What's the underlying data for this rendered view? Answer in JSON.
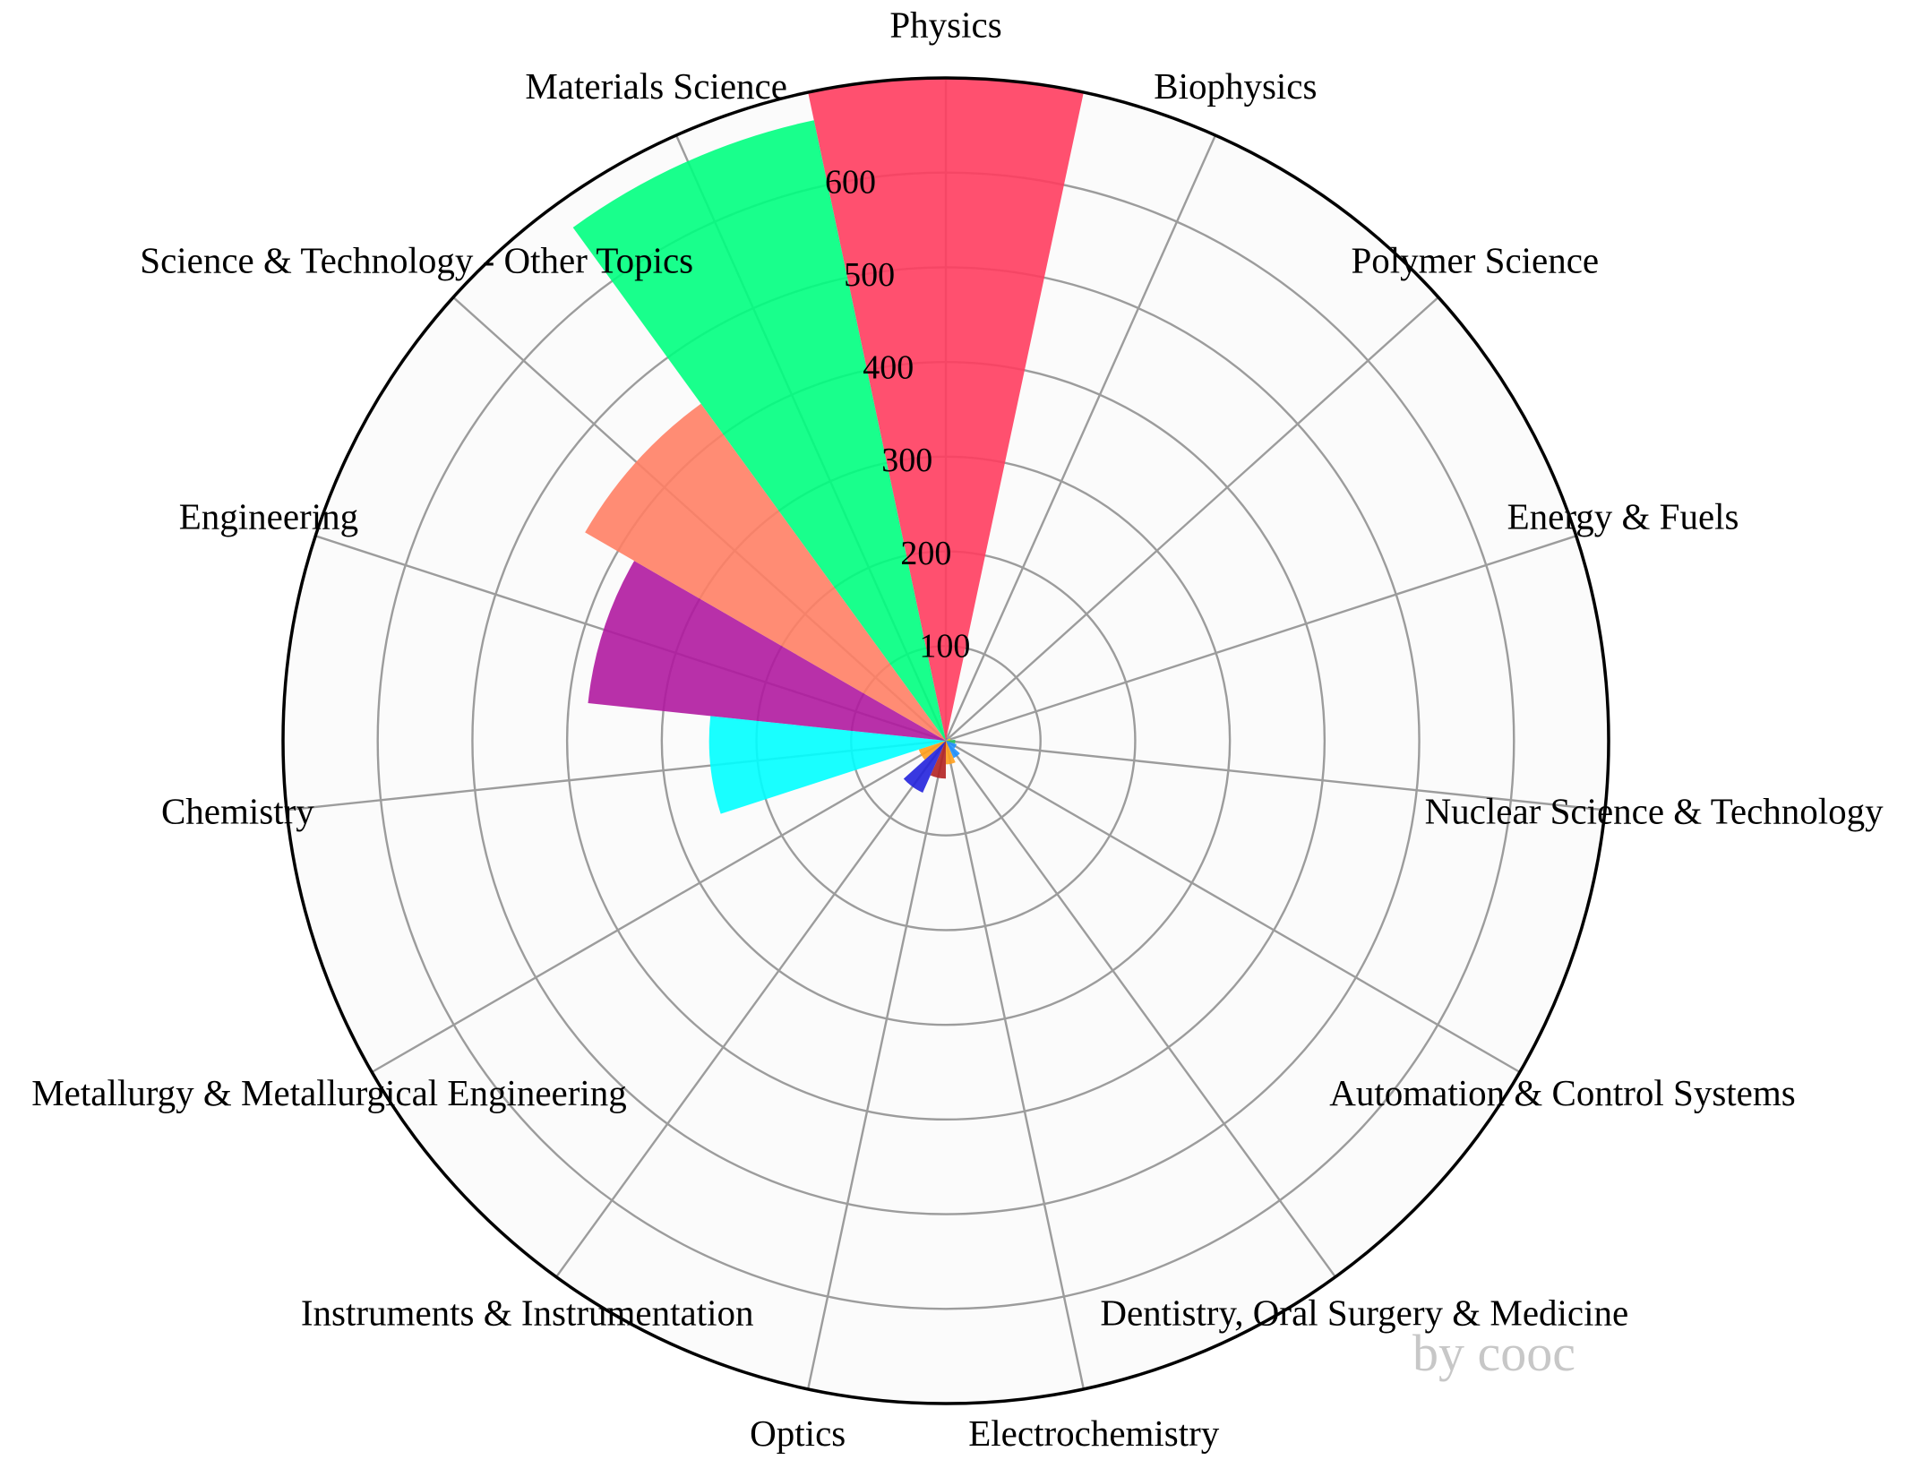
{
  "chart_data": {
    "type": "bar",
    "subtype": "polar",
    "title": "",
    "grid": true,
    "rlim": [
      0,
      700
    ],
    "radial_ticks": [
      "100",
      "200",
      "300",
      "400",
      "500",
      "600"
    ],
    "categories": [
      "Physics",
      "Biophysics",
      "Polymer Science",
      "Energy & Fuels",
      "Nuclear Science & Technology",
      "Automation & Control Systems",
      "Dentistry, Oral Surgery & Medicine",
      "Electrochemistry",
      "Optics",
      "Instruments & Instrumentation",
      "Metallurgy & Metallurgical Engineering",
      "Chemistry",
      "Engineering",
      "Science & Technology - Other Topics",
      "Materials Science"
    ],
    "bars": [
      {
        "category": "Physics",
        "value": 700,
        "color": "#ff3d5f"
      },
      {
        "category": "Biophysics",
        "value": 3,
        "color": "#8a2be2"
      },
      {
        "category": "Polymer Science",
        "value": 4,
        "color": "#a0a0a0"
      },
      {
        "category": "Energy & Fuels",
        "value": 5,
        "color": "#ffd800"
      },
      {
        "category": "Nuclear Science & Technology",
        "value": 10,
        "color": "#22c55e"
      },
      {
        "category": "Automation & Control Systems",
        "value": 12,
        "color": "#1e90ff"
      },
      {
        "category": "Dentistry, Oral Surgery & Medicine",
        "value": 20,
        "color": "#1e90ff"
      },
      {
        "category": "Electrochemistry",
        "value": 25,
        "color": "#ff9f1c"
      },
      {
        "category": "Optics",
        "value": 40,
        "color": "#b22222"
      },
      {
        "category": "Instruments & Instrumentation",
        "value": 60,
        "color": "#2222dd"
      },
      {
        "category": "Metallurgy & Metallurgical Engineering",
        "value": 30,
        "color": "#ff9f1c"
      },
      {
        "category": "Chemistry",
        "value": 250,
        "color": "#00ffff"
      },
      {
        "category": "Engineering",
        "value": 380,
        "color": "#b01aa0"
      },
      {
        "category": "Science & Technology - Other Topics",
        "value": 440,
        "color": "#ff7f65"
      },
      {
        "category": "Materials Science",
        "value": 670,
        "color": "#00ff7f"
      }
    ],
    "watermark": "by cooc"
  }
}
